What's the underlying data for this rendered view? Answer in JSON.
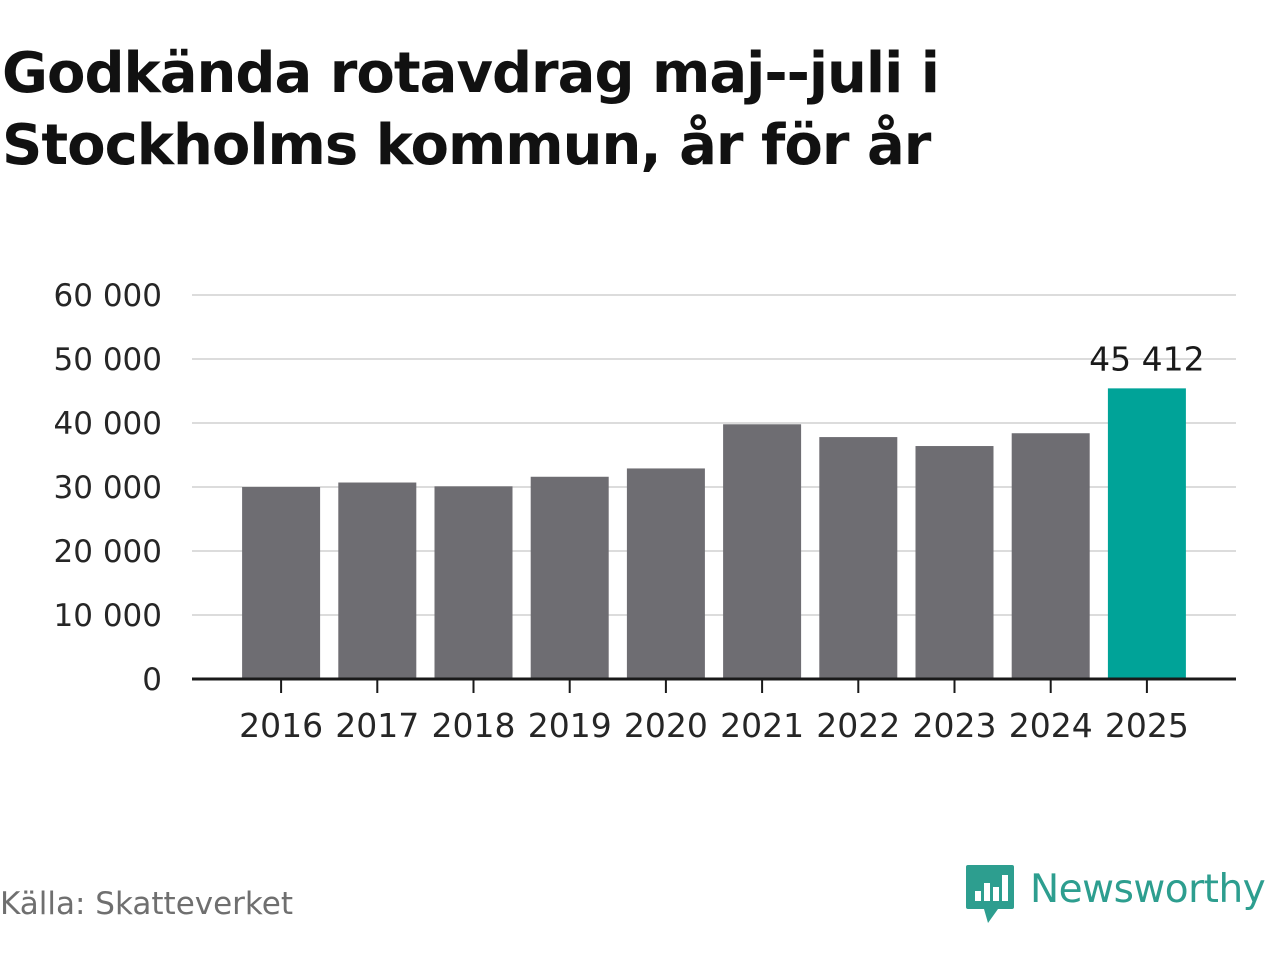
{
  "title": "Godkända rotavdrag maj--juli i Stockholms kommun, år för år",
  "source": "Källa: Skatteverket",
  "brand": {
    "name": "Newsworthy",
    "logo_icon": "newsworthy-chart-bubble-icon"
  },
  "colors": {
    "bar": "#6e6d72",
    "highlight": "#00a398",
    "grid": "#dcdcdc",
    "axis": "#1a1a1a",
    "brand": "#2d9e8f"
  },
  "chart_data": {
    "type": "bar",
    "categories": [
      "2016",
      "2017",
      "2018",
      "2019",
      "2020",
      "2021",
      "2022",
      "2023",
      "2024",
      "2025"
    ],
    "values": [
      30000,
      30700,
      30100,
      31600,
      32900,
      39800,
      37800,
      36400,
      38400,
      45412
    ],
    "highlight_index": 9,
    "data_labels": [
      {
        "index": 9,
        "text": "45 412"
      }
    ],
    "y_ticks": [
      0,
      10000,
      20000,
      30000,
      40000,
      50000,
      60000
    ],
    "y_tick_labels": [
      "0",
      "10 000",
      "20 000",
      "30 000",
      "40 000",
      "50 000",
      "60 000"
    ],
    "ylim": [
      0,
      60000
    ],
    "grid": true,
    "xlabel": "",
    "ylabel": ""
  }
}
